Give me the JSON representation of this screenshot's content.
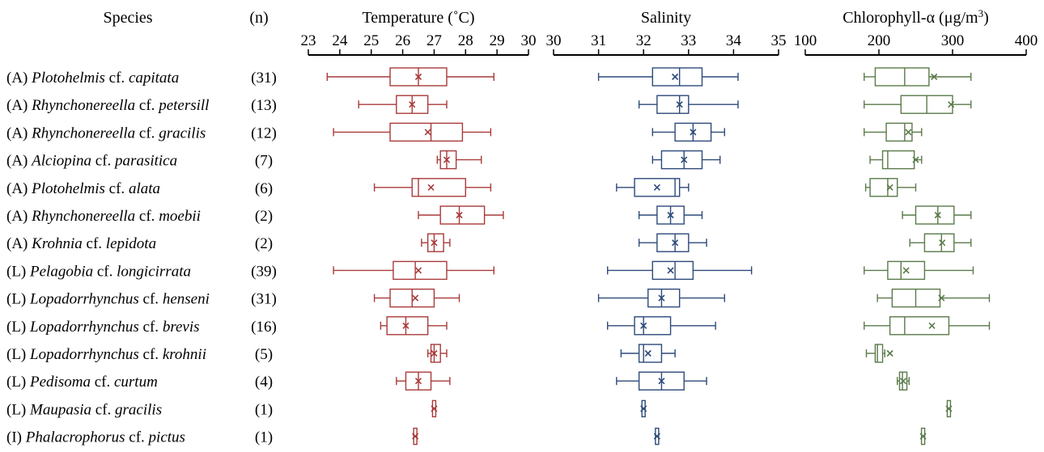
{
  "headers": {
    "species": "Species",
    "n": "(n)"
  },
  "rows": [
    {
      "prefix": "(A)",
      "genus": "Plotohelmis",
      "cf": "cf.",
      "epithet": "capitata",
      "n": "(31)"
    },
    {
      "prefix": "(A)",
      "genus": "Rhynchonereella",
      "cf": "cf.",
      "epithet": "petersill",
      "n": "(13)"
    },
    {
      "prefix": "(A)",
      "genus": "Rhynchonereella",
      "cf": "cf.",
      "epithet": "gracilis",
      "n": "(12)"
    },
    {
      "prefix": "(A)",
      "genus": "Alciopina",
      "cf": "cf.",
      "epithet": "parasitica",
      "n": "(7)"
    },
    {
      "prefix": "(A)",
      "genus": "Plotohelmis",
      "cf": "cf.",
      "epithet": "alata",
      "n": "(6)"
    },
    {
      "prefix": "(A)",
      "genus": "Rhynchonereella",
      "cf": "cf.",
      "epithet": "moebii",
      "n": "(2)"
    },
    {
      "prefix": "(A)",
      "genus": "Krohnia",
      "cf": "cf.",
      "epithet": "lepidota",
      "n": "(2)"
    },
    {
      "prefix": "(L)",
      "genus": "Pelagobia",
      "cf": "cf.",
      "epithet": "longicirrata",
      "n": "(39)"
    },
    {
      "prefix": "(L)",
      "genus": "Lopadorrhynchus",
      "cf": "cf.",
      "epithet": "henseni",
      "n": "(31)"
    },
    {
      "prefix": "(L)",
      "genus": "Lopadorrhynchus",
      "cf": "cf.",
      "epithet": "brevis",
      "n": "(16)"
    },
    {
      "prefix": "(L)",
      "genus": "Lopadorrhynchus",
      "cf": "cf.",
      "epithet": "krohnii",
      "n": "(5)"
    },
    {
      "prefix": "(L)",
      "genus": "Pedisoma",
      "cf": "cf.",
      "epithet": "curtum",
      "n": "(4)"
    },
    {
      "prefix": "(L)",
      "genus": "Maupasia",
      "cf": "cf.",
      "epithet": "gracilis",
      "n": "(1)"
    },
    {
      "prefix": "(I)",
      "genus": "Phalacrophorus",
      "cf": "cf.",
      "epithet": "pictus",
      "n": "(1)"
    }
  ],
  "chart_data": [
    {
      "type": "boxplot",
      "title": "Temperature (˚C)",
      "color": "#a93a3a",
      "xlim": [
        23,
        30
      ],
      "ticks": [
        23,
        24,
        25,
        26,
        27,
        28,
        29,
        30
      ],
      "tick_labels": [
        "23",
        "24",
        "25",
        "26",
        "27",
        "28",
        "29",
        "30"
      ],
      "boxes": [
        {
          "min": 23.6,
          "q1": 25.6,
          "median": 26.5,
          "q3": 27.4,
          "max": 28.9,
          "mean": 26.5
        },
        {
          "min": 24.6,
          "q1": 25.8,
          "median": 26.3,
          "q3": 26.8,
          "max": 27.4,
          "mean": 26.3
        },
        {
          "min": 23.8,
          "q1": 25.6,
          "median": 26.9,
          "q3": 27.9,
          "max": 28.8,
          "mean": 26.8
        },
        {
          "min": 27.1,
          "q1": 27.2,
          "median": 27.4,
          "q3": 27.7,
          "max": 28.5,
          "mean": 27.4
        },
        {
          "min": 25.1,
          "q1": 26.3,
          "median": 26.5,
          "q3": 28.0,
          "max": 28.8,
          "mean": 26.9
        },
        {
          "min": 26.5,
          "q1": 27.2,
          "median": 27.8,
          "q3": 28.6,
          "max": 29.2,
          "mean": 27.8
        },
        {
          "min": 26.6,
          "q1": 26.8,
          "median": 27.0,
          "q3": 27.3,
          "max": 27.5,
          "mean": 27.0
        },
        {
          "min": 23.8,
          "q1": 25.7,
          "median": 26.4,
          "q3": 27.4,
          "max": 28.9,
          "mean": 26.5
        },
        {
          "min": 25.1,
          "q1": 25.6,
          "median": 26.3,
          "q3": 27.0,
          "max": 27.8,
          "mean": 26.4
        },
        {
          "min": 25.3,
          "q1": 25.5,
          "median": 26.1,
          "q3": 26.8,
          "max": 27.4,
          "mean": 26.1
        },
        {
          "min": 26.8,
          "q1": 26.9,
          "median": 27.0,
          "q3": 27.2,
          "max": 27.4,
          "mean": 27.0
        },
        {
          "min": 25.8,
          "q1": 26.1,
          "median": 26.5,
          "q3": 26.9,
          "max": 27.5,
          "mean": 26.5
        },
        {
          "min": 27.0,
          "q1": 27.0,
          "median": 27.0,
          "q3": 27.0,
          "max": 27.0,
          "mean": 27.0
        },
        {
          "min": 26.4,
          "q1": 26.4,
          "median": 26.4,
          "q3": 26.4,
          "max": 26.4,
          "mean": 26.4
        }
      ]
    },
    {
      "type": "boxplot",
      "title": "Salinity",
      "color": "#2d4a7a",
      "xlim": [
        30,
        35
      ],
      "ticks": [
        30,
        31,
        32,
        33,
        34,
        35
      ],
      "tick_labels": [
        "30",
        "31",
        "32",
        "33",
        "34",
        "35"
      ],
      "boxes": [
        {
          "min": 31.0,
          "q1": 32.2,
          "median": 32.8,
          "q3": 33.3,
          "max": 34.1,
          "mean": 32.7
        },
        {
          "min": 31.9,
          "q1": 32.3,
          "median": 32.8,
          "q3": 33.0,
          "max": 34.1,
          "mean": 32.8
        },
        {
          "min": 32.2,
          "q1": 32.7,
          "median": 33.1,
          "q3": 33.5,
          "max": 33.8,
          "mean": 33.1
        },
        {
          "min": 32.2,
          "q1": 32.4,
          "median": 32.9,
          "q3": 33.3,
          "max": 33.7,
          "mean": 32.9
        },
        {
          "min": 31.4,
          "q1": 31.8,
          "median": 32.7,
          "q3": 32.8,
          "max": 33.0,
          "mean": 32.3
        },
        {
          "min": 31.9,
          "q1": 32.3,
          "median": 32.6,
          "q3": 32.9,
          "max": 33.3,
          "mean": 32.6
        },
        {
          "min": 31.9,
          "q1": 32.3,
          "median": 32.7,
          "q3": 33.0,
          "max": 33.4,
          "mean": 32.7
        },
        {
          "min": 31.2,
          "q1": 32.2,
          "median": 32.7,
          "q3": 33.1,
          "max": 34.4,
          "mean": 32.6
        },
        {
          "min": 31.0,
          "q1": 32.1,
          "median": 32.4,
          "q3": 32.8,
          "max": 33.8,
          "mean": 32.4
        },
        {
          "min": 31.2,
          "q1": 31.8,
          "median": 32.0,
          "q3": 32.6,
          "max": 33.6,
          "mean": 32.0
        },
        {
          "min": 31.5,
          "q1": 31.9,
          "median": 32.0,
          "q3": 32.4,
          "max": 32.7,
          "mean": 32.1
        },
        {
          "min": 31.4,
          "q1": 31.9,
          "median": 32.4,
          "q3": 32.9,
          "max": 33.4,
          "mean": 32.4
        },
        {
          "min": 32.0,
          "q1": 32.0,
          "median": 32.0,
          "q3": 32.0,
          "max": 32.0,
          "mean": 32.0
        },
        {
          "min": 32.3,
          "q1": 32.3,
          "median": 32.3,
          "q3": 32.3,
          "max": 32.3,
          "mean": 32.3
        }
      ]
    },
    {
      "type": "boxplot",
      "title": "Chlorophyll-α (μg/m",
      "title_sup": "3",
      "title_tail": ")",
      "color": "#5a7a4a",
      "xlim": [
        100,
        400
      ],
      "ticks": [
        100,
        200,
        300,
        400
      ],
      "tick_labels": [
        "100",
        "200",
        "300",
        "400"
      ],
      "boxes": [
        {
          "min": 180,
          "q1": 195,
          "median": 235,
          "q3": 268,
          "max": 325,
          "mean": 275
        },
        {
          "min": 180,
          "q1": 230,
          "median": 265,
          "q3": 300,
          "max": 325,
          "mean": 298
        },
        {
          "min": 180,
          "q1": 210,
          "median": 235,
          "q3": 245,
          "max": 258,
          "mean": 240
        },
        {
          "min": 188,
          "q1": 205,
          "median": 212,
          "q3": 248,
          "max": 258,
          "mean": 250
        },
        {
          "min": 182,
          "q1": 188,
          "median": 212,
          "q3": 225,
          "max": 250,
          "mean": 215
        },
        {
          "min": 232,
          "q1": 250,
          "median": 280,
          "q3": 302,
          "max": 325,
          "mean": 280
        },
        {
          "min": 242,
          "q1": 262,
          "median": 285,
          "q3": 302,
          "max": 325,
          "mean": 286
        },
        {
          "min": 180,
          "q1": 212,
          "median": 230,
          "q3": 262,
          "max": 328,
          "mean": 237
        },
        {
          "min": 198,
          "q1": 218,
          "median": 250,
          "q3": 283,
          "max": 350,
          "mean": 285
        },
        {
          "min": 180,
          "q1": 215,
          "median": 235,
          "q3": 295,
          "max": 350,
          "mean": 272
        },
        {
          "min": 183,
          "q1": 195,
          "median": 198,
          "q3": 205,
          "max": 208,
          "mean": 215
        },
        {
          "min": 225,
          "q1": 228,
          "median": 232,
          "q3": 238,
          "max": 241,
          "mean": 233
        },
        {
          "min": 295,
          "q1": 295,
          "median": 295,
          "q3": 295,
          "max": 295,
          "mean": 295
        },
        {
          "min": 260,
          "q1": 260,
          "median": 260,
          "q3": 260,
          "max": 260,
          "mean": 260
        }
      ]
    }
  ]
}
